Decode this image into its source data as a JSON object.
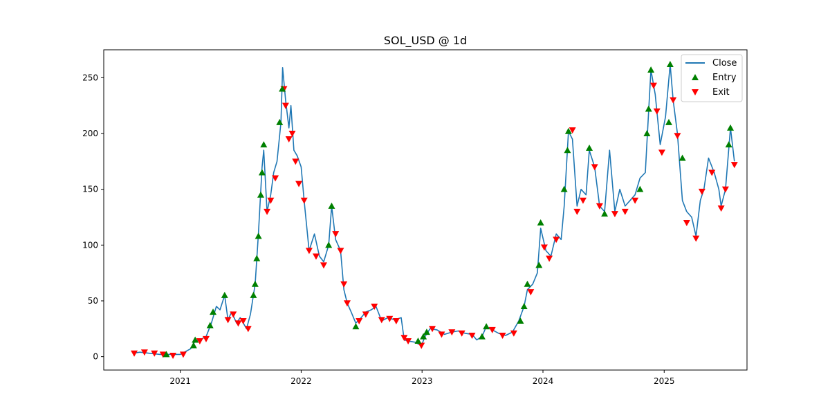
{
  "chart_data": {
    "type": "line",
    "title": "SOL_USD @ 1d",
    "xlabel": "",
    "ylabel": "",
    "xlim": [
      "2020-05-15",
      "2025-09-08"
    ],
    "ylim": [
      -12,
      275
    ],
    "x_ticks": [
      "2021",
      "2022",
      "2023",
      "2024",
      "2025"
    ],
    "x_tick_dates": [
      "2021-01-01",
      "2022-01-01",
      "2023-01-01",
      "2024-01-01",
      "2025-01-01"
    ],
    "y_ticks": [
      0,
      50,
      100,
      150,
      200,
      250
    ],
    "grid": false,
    "legend_position": "top-right",
    "legend": [
      "Close",
      "Entry",
      "Exit"
    ],
    "colors": {
      "close": "#1f77b4",
      "entry": "#008000",
      "exit": "#ff0000"
    },
    "series": [
      {
        "name": "Close",
        "points": [
          [
            "2020-08-10",
            3
          ],
          [
            "2020-09-01",
            4
          ],
          [
            "2020-10-01",
            3
          ],
          [
            "2020-11-01",
            2
          ],
          [
            "2020-12-01",
            2
          ],
          [
            "2021-01-01",
            2
          ],
          [
            "2021-02-01",
            7
          ],
          [
            "2021-02-15",
            14
          ],
          [
            "2021-03-01",
            15
          ],
          [
            "2021-03-20",
            18
          ],
          [
            "2021-04-05",
            30
          ],
          [
            "2021-04-20",
            45
          ],
          [
            "2021-05-01",
            42
          ],
          [
            "2021-05-15",
            55
          ],
          [
            "2021-05-25",
            33
          ],
          [
            "2021-06-05",
            40
          ],
          [
            "2021-06-20",
            30
          ],
          [
            "2021-07-01",
            35
          ],
          [
            "2021-07-20",
            25
          ],
          [
            "2021-08-01",
            38
          ],
          [
            "2021-08-15",
            65
          ],
          [
            "2021-08-25",
            110
          ],
          [
            "2021-09-05",
            170
          ],
          [
            "2021-09-10",
            185
          ],
          [
            "2021-09-20",
            130
          ],
          [
            "2021-10-01",
            145
          ],
          [
            "2021-10-10",
            165
          ],
          [
            "2021-10-20",
            175
          ],
          [
            "2021-11-01",
            210
          ],
          [
            "2021-11-06",
            259
          ],
          [
            "2021-11-15",
            230
          ],
          [
            "2021-11-25",
            205
          ],
          [
            "2021-12-01",
            225
          ],
          [
            "2021-12-10",
            185
          ],
          [
            "2021-12-20",
            180
          ],
          [
            "2022-01-01",
            170
          ],
          [
            "2022-01-10",
            140
          ],
          [
            "2022-01-25",
            95
          ],
          [
            "2022-02-10",
            110
          ],
          [
            "2022-02-25",
            90
          ],
          [
            "2022-03-10",
            85
          ],
          [
            "2022-03-25",
            100
          ],
          [
            "2022-04-03",
            135
          ],
          [
            "2022-04-15",
            105
          ],
          [
            "2022-04-30",
            95
          ],
          [
            "2022-05-10",
            60
          ],
          [
            "2022-05-20",
            48
          ],
          [
            "2022-06-01",
            40
          ],
          [
            "2022-06-15",
            30
          ],
          [
            "2022-07-01",
            35
          ],
          [
            "2022-07-15",
            40
          ],
          [
            "2022-08-01",
            42
          ],
          [
            "2022-08-15",
            45
          ],
          [
            "2022-09-01",
            32
          ],
          [
            "2022-09-20",
            35
          ],
          [
            "2022-10-10",
            33
          ],
          [
            "2022-10-30",
            35
          ],
          [
            "2022-11-08",
            15
          ],
          [
            "2022-11-20",
            14
          ],
          [
            "2022-12-10",
            13
          ],
          [
            "2022-12-30",
            10
          ],
          [
            "2023-01-10",
            18
          ],
          [
            "2023-01-25",
            25
          ],
          [
            "2023-02-15",
            24
          ],
          [
            "2023-03-10",
            20
          ],
          [
            "2023-04-01",
            22
          ],
          [
            "2023-04-20",
            23
          ],
          [
            "2023-05-10",
            21
          ],
          [
            "2023-06-01",
            20
          ],
          [
            "2023-06-15",
            15
          ],
          [
            "2023-07-01",
            18
          ],
          [
            "2023-07-14",
            27
          ],
          [
            "2023-08-01",
            24
          ],
          [
            "2023-08-20",
            21
          ],
          [
            "2023-09-10",
            19
          ],
          [
            "2023-10-01",
            22
          ],
          [
            "2023-10-20",
            32
          ],
          [
            "2023-11-05",
            45
          ],
          [
            "2023-11-15",
            60
          ],
          [
            "2023-12-01",
            65
          ],
          [
            "2023-12-15",
            75
          ],
          [
            "2023-12-25",
            115
          ],
          [
            "2024-01-10",
            95
          ],
          [
            "2024-01-25",
            90
          ],
          [
            "2024-02-10",
            110
          ],
          [
            "2024-02-25",
            105
          ],
          [
            "2024-03-05",
            135
          ],
          [
            "2024-03-18",
            202
          ],
          [
            "2024-03-30",
            195
          ],
          [
            "2024-04-13",
            135
          ],
          [
            "2024-04-25",
            150
          ],
          [
            "2024-05-10",
            145
          ],
          [
            "2024-05-20",
            185
          ],
          [
            "2024-06-05",
            170
          ],
          [
            "2024-06-20",
            135
          ],
          [
            "2024-07-05",
            130
          ],
          [
            "2024-07-20",
            185
          ],
          [
            "2024-08-05",
            130
          ],
          [
            "2024-08-20",
            150
          ],
          [
            "2024-09-05",
            135
          ],
          [
            "2024-09-20",
            140
          ],
          [
            "2024-10-05",
            145
          ],
          [
            "2024-10-20",
            160
          ],
          [
            "2024-11-05",
            165
          ],
          [
            "2024-11-15",
            220
          ],
          [
            "2024-11-22",
            257
          ],
          [
            "2024-12-05",
            235
          ],
          [
            "2024-12-20",
            190
          ],
          [
            "2025-01-05",
            215
          ],
          [
            "2025-01-19",
            262
          ],
          [
            "2025-01-28",
            230
          ],
          [
            "2025-02-10",
            200
          ],
          [
            "2025-02-25",
            140
          ],
          [
            "2025-03-10",
            130
          ],
          [
            "2025-03-25",
            125
          ],
          [
            "2025-04-07",
            108
          ],
          [
            "2025-04-20",
            140
          ],
          [
            "2025-05-01",
            150
          ],
          [
            "2025-05-15",
            178
          ],
          [
            "2025-06-01",
            165
          ],
          [
            "2025-06-15",
            150
          ],
          [
            "2025-06-22",
            135
          ],
          [
            "2025-07-05",
            150
          ],
          [
            "2025-07-20",
            205
          ],
          [
            "2025-08-01",
            175
          ]
        ]
      },
      {
        "name": "Entry",
        "points": [
          [
            "2020-11-20",
            2
          ],
          [
            "2021-02-10",
            10
          ],
          [
            "2021-02-15",
            15
          ],
          [
            "2021-04-01",
            28
          ],
          [
            "2021-04-10",
            40
          ],
          [
            "2021-05-15",
            55
          ],
          [
            "2021-08-10",
            55
          ],
          [
            "2021-08-15",
            65
          ],
          [
            "2021-08-20",
            88
          ],
          [
            "2021-08-25",
            108
          ],
          [
            "2021-09-01",
            145
          ],
          [
            "2021-09-05",
            165
          ],
          [
            "2021-09-10",
            190
          ],
          [
            "2021-10-28",
            210
          ],
          [
            "2021-11-05",
            240
          ],
          [
            "2022-03-25",
            100
          ],
          [
            "2022-04-03",
            135
          ],
          [
            "2022-06-15",
            27
          ],
          [
            "2022-12-20",
            14
          ],
          [
            "2023-01-05",
            18
          ],
          [
            "2023-01-15",
            22
          ],
          [
            "2023-07-01",
            18
          ],
          [
            "2023-07-14",
            27
          ],
          [
            "2023-10-25",
            32
          ],
          [
            "2023-11-05",
            45
          ],
          [
            "2023-11-15",
            65
          ],
          [
            "2023-12-20",
            82
          ],
          [
            "2023-12-25",
            120
          ],
          [
            "2024-03-05",
            150
          ],
          [
            "2024-03-15",
            185
          ],
          [
            "2024-03-18",
            202
          ],
          [
            "2024-05-20",
            187
          ],
          [
            "2024-07-05",
            128
          ],
          [
            "2024-10-20",
            150
          ],
          [
            "2024-11-10",
            200
          ],
          [
            "2024-11-15",
            222
          ],
          [
            "2024-11-22",
            257
          ],
          [
            "2025-01-15",
            210
          ],
          [
            "2025-01-19",
            262
          ],
          [
            "2025-02-25",
            178
          ],
          [
            "2025-07-15",
            190
          ],
          [
            "2025-07-20",
            205
          ]
        ]
      },
      {
        "name": "Exit",
        "points": [
          [
            "2020-08-15",
            3
          ],
          [
            "2020-09-15",
            4
          ],
          [
            "2020-10-15",
            3
          ],
          [
            "2020-11-10",
            2
          ],
          [
            "2020-12-10",
            1
          ],
          [
            "2021-01-10",
            2
          ],
          [
            "2021-03-01",
            14
          ],
          [
            "2021-03-20",
            16
          ],
          [
            "2021-05-25",
            33
          ],
          [
            "2021-06-10",
            38
          ],
          [
            "2021-06-25",
            30
          ],
          [
            "2021-07-10",
            32
          ],
          [
            "2021-07-25",
            25
          ],
          [
            "2021-09-20",
            130
          ],
          [
            "2021-10-01",
            140
          ],
          [
            "2021-10-15",
            160
          ],
          [
            "2021-11-10",
            240
          ],
          [
            "2021-11-15",
            225
          ],
          [
            "2021-11-25",
            195
          ],
          [
            "2021-12-05",
            200
          ],
          [
            "2021-12-15",
            175
          ],
          [
            "2021-12-25",
            155
          ],
          [
            "2022-01-10",
            140
          ],
          [
            "2022-01-25",
            95
          ],
          [
            "2022-02-15",
            90
          ],
          [
            "2022-03-10",
            82
          ],
          [
            "2022-04-15",
            110
          ],
          [
            "2022-04-30",
            95
          ],
          [
            "2022-05-10",
            65
          ],
          [
            "2022-05-20",
            48
          ],
          [
            "2022-06-25",
            32
          ],
          [
            "2022-07-15",
            38
          ],
          [
            "2022-08-10",
            45
          ],
          [
            "2022-09-01",
            33
          ],
          [
            "2022-09-25",
            34
          ],
          [
            "2022-10-15",
            32
          ],
          [
            "2022-11-08",
            17
          ],
          [
            "2022-11-20",
            14
          ],
          [
            "2022-12-30",
            10
          ],
          [
            "2023-02-01",
            25
          ],
          [
            "2023-03-01",
            20
          ],
          [
            "2023-04-01",
            22
          ],
          [
            "2023-05-01",
            21
          ],
          [
            "2023-06-01",
            19
          ],
          [
            "2023-08-01",
            24
          ],
          [
            "2023-09-01",
            19
          ],
          [
            "2023-10-05",
            21
          ],
          [
            "2023-11-25",
            58
          ],
          [
            "2024-01-05",
            98
          ],
          [
            "2024-01-20",
            88
          ],
          [
            "2024-02-10",
            105
          ],
          [
            "2024-03-30",
            203
          ],
          [
            "2024-04-13",
            130
          ],
          [
            "2024-05-01",
            140
          ],
          [
            "2024-06-05",
            170
          ],
          [
            "2024-06-20",
            135
          ],
          [
            "2024-08-05",
            128
          ],
          [
            "2024-09-05",
            130
          ],
          [
            "2024-10-05",
            140
          ],
          [
            "2024-11-30",
            243
          ],
          [
            "2024-12-10",
            220
          ],
          [
            "2024-12-25",
            183
          ],
          [
            "2025-01-28",
            230
          ],
          [
            "2025-02-10",
            198
          ],
          [
            "2025-03-10",
            120
          ],
          [
            "2025-04-07",
            106
          ],
          [
            "2025-04-25",
            148
          ],
          [
            "2025-05-25",
            165
          ],
          [
            "2025-06-22",
            133
          ],
          [
            "2025-07-05",
            150
          ],
          [
            "2025-08-01",
            172
          ]
        ]
      }
    ]
  }
}
